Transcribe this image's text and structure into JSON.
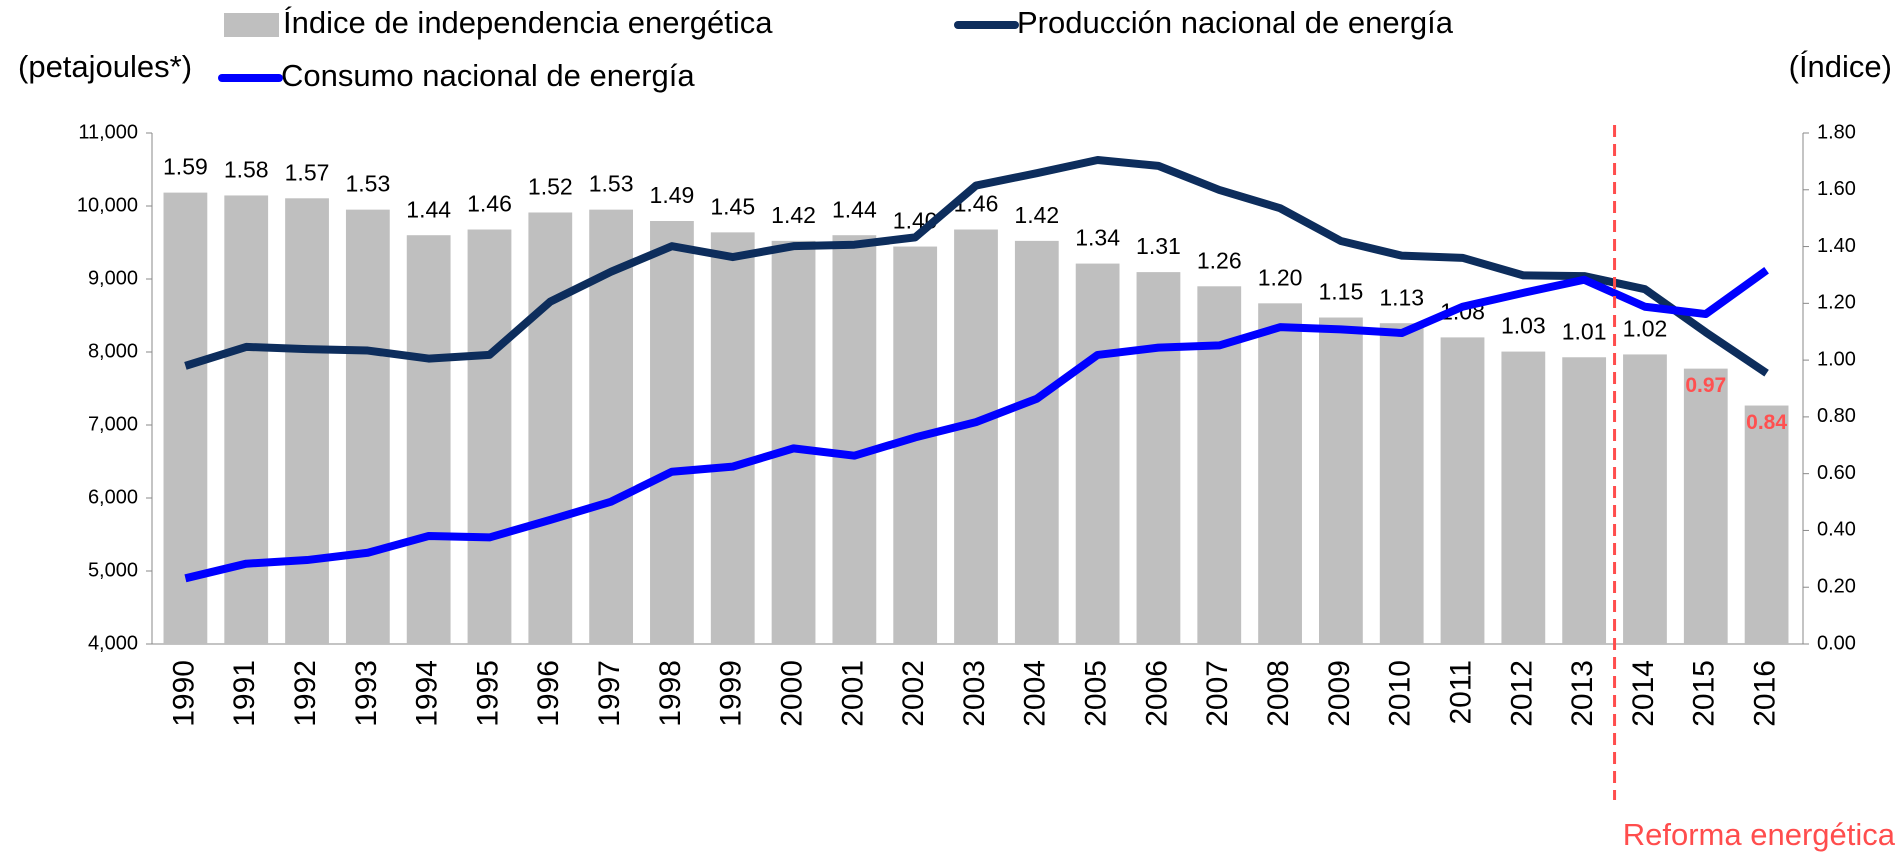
{
  "chart_data": {
    "type": "bar_line_dual",
    "y_label": "(petajoules*)",
    "y2_label": "(Índice)",
    "annotation": "Reforma energética",
    "annotation_color": "#ff4d4d",
    "categories": [
      "1990",
      "1991",
      "1992",
      "1993",
      "1994",
      "1995",
      "1996",
      "1997",
      "1998",
      "1999",
      "2000",
      "2001",
      "2002",
      "2003",
      "2004",
      "2005",
      "2006",
      "2007",
      "2008",
      "2009",
      "2010",
      "2011",
      "2012",
      "2013",
      "2014",
      "2015",
      "2016"
    ],
    "series": [
      {
        "name": "Índice de independencia energética",
        "type": "bar",
        "axis": "y2",
        "color": "#bfbfbf",
        "values": [
          1.59,
          1.58,
          1.57,
          1.53,
          1.44,
          1.46,
          1.52,
          1.53,
          1.49,
          1.45,
          1.42,
          1.44,
          1.4,
          1.46,
          1.42,
          1.34,
          1.31,
          1.26,
          1.2,
          1.15,
          1.13,
          1.08,
          1.03,
          1.01,
          1.02,
          0.97,
          0.84
        ],
        "value_labels": [
          "1.59",
          "1.58",
          "1.57",
          "1.53",
          "1.44",
          "1.46",
          "1.52",
          "1.53",
          "1.49",
          "1.45",
          "1.42",
          "1.44",
          "1.40",
          "1.46",
          "1.42",
          "1.34",
          "1.31",
          "1.26",
          "1.20",
          "1.15",
          "1.13",
          "1.08",
          "1.03",
          "1.01",
          "1.02",
          "0.97",
          "0.84"
        ],
        "value_label_colors": [
          "#000",
          "#000",
          "#000",
          "#000",
          "#000",
          "#000",
          "#000",
          "#000",
          "#000",
          "#000",
          "#000",
          "#000",
          "#000",
          "#000",
          "#000",
          "#000",
          "#000",
          "#000",
          "#000",
          "#000",
          "#000",
          "#000",
          "#000",
          "#000",
          "#000",
          "#ff5050",
          "#ff5050"
        ]
      },
      {
        "name": "Producción nacional de energía",
        "type": "line",
        "color": "#0d2d5c",
        "values": [
          7810,
          8070,
          8040,
          8020,
          7910,
          7960,
          8690,
          9100,
          9450,
          9300,
          9450,
          9470,
          9570,
          10280,
          10450,
          10630,
          10550,
          10220,
          9970,
          9520,
          9320,
          9290,
          9050,
          9040,
          8860,
          8270,
          7710
        ]
      },
      {
        "name": "Consumo nacional de energía",
        "type": "line",
        "color": "#0000ff",
        "values": [
          4900,
          5100,
          5150,
          5250,
          5480,
          5460,
          5700,
          5950,
          6360,
          6430,
          6680,
          6580,
          6830,
          7040,
          7360,
          7960,
          8060,
          8090,
          8340,
          8310,
          8260,
          8620,
          8810,
          8990,
          8620,
          8520,
          9120
        ]
      }
    ],
    "ylim": [
      4000,
      11000
    ],
    "yticks": [
      {
        "value": 4000,
        "label": "4,000"
      },
      {
        "value": 5000,
        "label": "5,000"
      },
      {
        "value": 6000,
        "label": "6,000"
      },
      {
        "value": 7000,
        "label": "7,000"
      },
      {
        "value": 8000,
        "label": "8,000"
      },
      {
        "value": 9000,
        "label": "9,000"
      },
      {
        "value": 10000,
        "label": "10,000"
      },
      {
        "value": 11000,
        "label": "11,000"
      }
    ],
    "y2lim": [
      0,
      1.8
    ],
    "y2ticks": [
      {
        "value": 0,
        "label": "0.00"
      },
      {
        "value": 0.2,
        "label": "0.20"
      },
      {
        "value": 0.4,
        "label": "0.40"
      },
      {
        "value": 0.6,
        "label": "0.60"
      },
      {
        "value": 0.8,
        "label": "0.80"
      },
      {
        "value": 1.0,
        "label": "1.00"
      },
      {
        "value": 1.2,
        "label": "1.20"
      },
      {
        "value": 1.4,
        "label": "1.40"
      },
      {
        "value": 1.6,
        "label": "1.60"
      },
      {
        "value": 1.8,
        "label": "1.80"
      }
    ]
  }
}
